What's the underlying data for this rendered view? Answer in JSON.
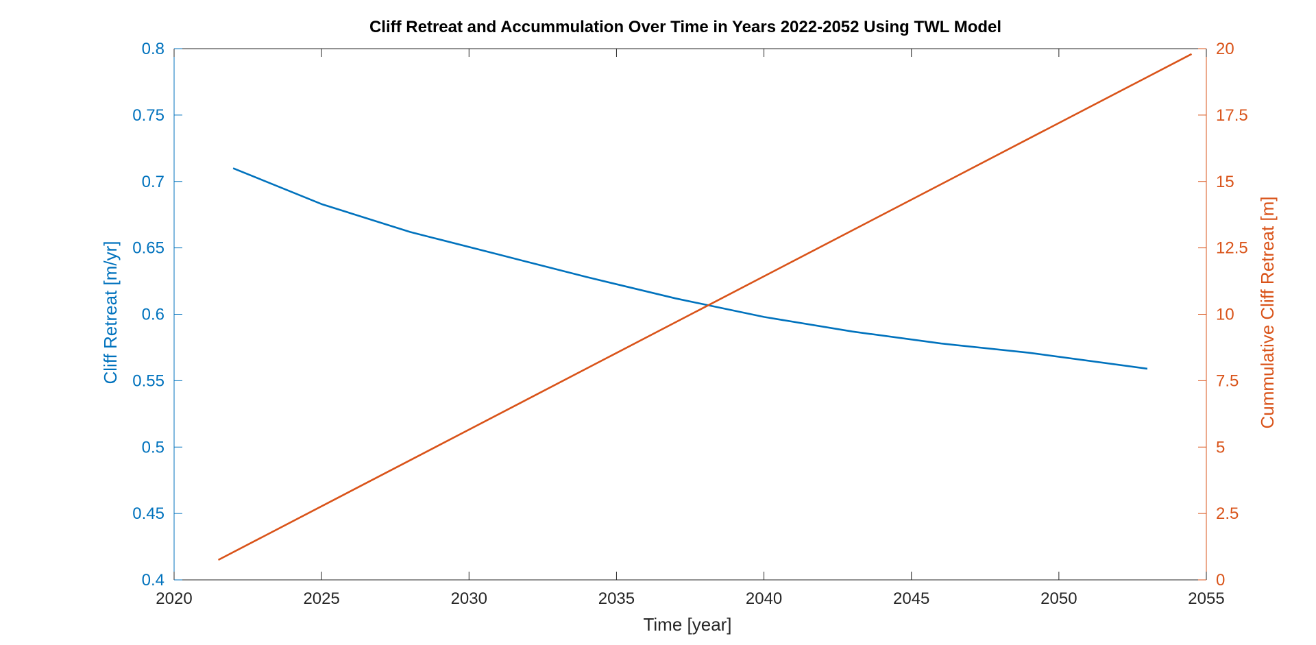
{
  "chart_data": {
    "type": "line",
    "title": "Cliff Retreat and Accummulation Over Time in Years 2022-2052 Using TWL Model",
    "xlabel": "Time [year]",
    "ylabel_left": "Cliff Retreat [m/yr]",
    "ylabel_right": "Cummulative Cliff Retreat [m]",
    "xlim": [
      2020,
      2055
    ],
    "ylim_left": [
      0.4,
      0.8
    ],
    "ylim_right": [
      0,
      20
    ],
    "x_ticks": [
      "2020",
      "2025",
      "2030",
      "2035",
      "2040",
      "2045",
      "2050",
      "2055"
    ],
    "y_ticks_left": [
      "0.4",
      "0.45",
      "0.5",
      "0.55",
      "0.6",
      "0.65",
      "0.7",
      "0.75",
      "0.8"
    ],
    "y_ticks_right": [
      "0",
      "2.5",
      "5",
      "7.5",
      "10",
      "12.5",
      "15",
      "17.5",
      "20"
    ],
    "grid": false,
    "colors": {
      "left": "#0072BD",
      "right": "#D95319",
      "axes": "#262626"
    },
    "series": [
      {
        "axis": "left",
        "color": "#0072BD",
        "x": [
          2022,
          2025,
          2028,
          2031,
          2034,
          2037,
          2040,
          2043,
          2046,
          2049,
          2053
        ],
        "y": [
          0.71,
          0.683,
          0.662,
          0.645,
          0.628,
          0.612,
          0.598,
          0.587,
          0.578,
          0.571,
          0.559
        ]
      },
      {
        "axis": "right",
        "color": "#D95319",
        "x": [
          2021.5,
          2054.5
        ],
        "y": [
          0.75,
          19.8
        ]
      }
    ]
  }
}
